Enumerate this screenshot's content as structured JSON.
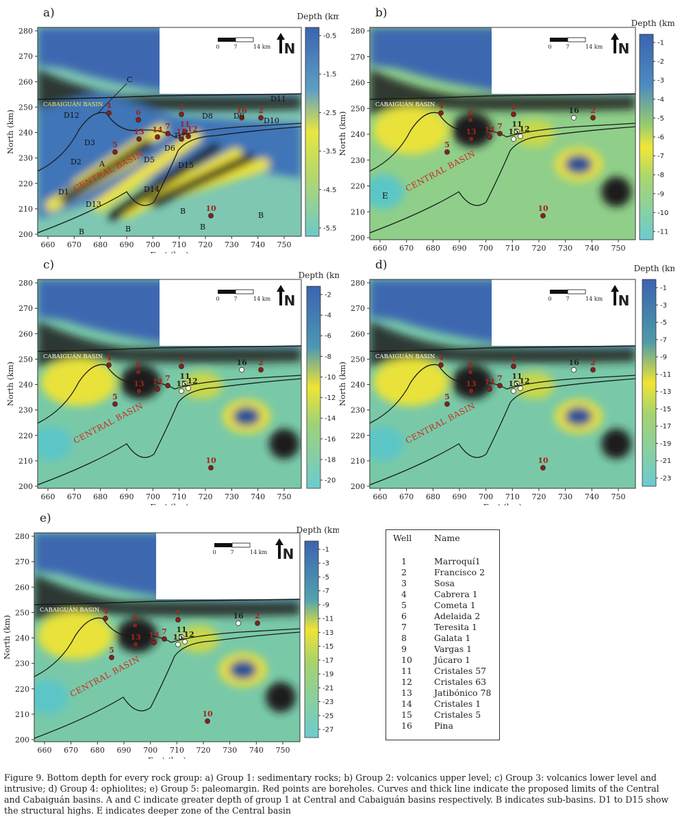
{
  "panels": [
    {
      "id": "a",
      "letter": "a)",
      "cbar_title": "Depth (km)",
      "cbar_ticks": [
        "-0.5",
        "-1.5",
        "-2.5",
        "-3.5",
        "-4.5",
        "-5.5"
      ],
      "cmap": "a"
    },
    {
      "id": "b",
      "letter": "b)",
      "cbar_title": "Depth (km)",
      "cbar_ticks": [
        "-1",
        "-2",
        "-3",
        "-4",
        "-5",
        "-6",
        "-7",
        "-8",
        "-9",
        "-10",
        "-11"
      ],
      "cmap": "b"
    },
    {
      "id": "c",
      "letter": "c)",
      "cbar_title": "Depth (km)",
      "cbar_ticks": [
        "-2",
        "-4",
        "-6",
        "-8",
        "-10",
        "-12",
        "-14",
        "-16",
        "-18",
        "-20"
      ],
      "cmap": "c"
    },
    {
      "id": "d",
      "letter": "d)",
      "cbar_title": "Depth (km)",
      "cbar_ticks": [
        "-1",
        "-3",
        "-5",
        "-7",
        "-9",
        "-11",
        "-13",
        "-15",
        "-17",
        "-19",
        "-21",
        "-23"
      ],
      "cmap": "d"
    },
    {
      "id": "e",
      "letter": "e)",
      "cbar_title": "Depth (km)",
      "cbar_ticks": [
        "-1",
        "-3",
        "-5",
        "-7",
        "-9",
        "-11",
        "-13",
        "-15",
        "-17",
        "-19",
        "-21",
        "-23",
        "-25",
        "-27"
      ],
      "cmap": "e"
    }
  ],
  "axes": {
    "xlabel": "East (km)",
    "ylabel": "North (km)",
    "xticks": [
      "660",
      "670",
      "680",
      "690",
      "700",
      "710",
      "720",
      "730",
      "740",
      "750"
    ],
    "yticks": [
      "280",
      "270",
      "260",
      "250",
      "240",
      "230",
      "220",
      "210",
      "200"
    ]
  },
  "scalebar": {
    "labels": [
      "0",
      "7",
      "14"
    ],
    "unit": "km"
  },
  "north_label": "N",
  "basins": {
    "cabaiguan": "CABAIGUÁN BASIN",
    "central": "CENTRAL BASIN"
  },
  "panel_a_labels": [
    "C",
    "D11",
    "D12",
    "D8",
    "D9",
    "D10",
    "D3",
    "D7",
    "D6",
    "D2",
    "A",
    "D5",
    "D15",
    "D1",
    "D14",
    "D13",
    "B",
    "B",
    "B",
    "B",
    "B"
  ],
  "panel_b_labels": [
    "E"
  ],
  "wells_visible": [
    "1",
    "2",
    "4",
    "5",
    "6",
    "7",
    "10",
    "11",
    "12",
    "13",
    "14",
    "15",
    "16"
  ],
  "table": {
    "col1": "Well",
    "col2": "Name",
    "rows": [
      {
        "num": "1",
        "name": "Marroquí1"
      },
      {
        "num": "2",
        "name": "Francisco 2"
      },
      {
        "num": "3",
        "name": "Sosa"
      },
      {
        "num": "4",
        "name": "Cabrera 1"
      },
      {
        "num": "5",
        "name": "Cometa 1"
      },
      {
        "num": "6",
        "name": "Adelaida 2"
      },
      {
        "num": "7",
        "name": "Teresita 1"
      },
      {
        "num": "8",
        "name": "Galata 1"
      },
      {
        "num": "9",
        "name": "Vargas 1"
      },
      {
        "num": "10",
        "name": "Júcaro 1"
      },
      {
        "num": "11",
        "name": "Cristales 57"
      },
      {
        "num": "12",
        "name": "Cristales 63"
      },
      {
        "num": "13",
        "name": "Jatibónico 78"
      },
      {
        "num": "14",
        "name": "Cristales 1"
      },
      {
        "num": "15",
        "name": "Cristales 5"
      },
      {
        "num": "16",
        "name": "Pina"
      }
    ]
  },
  "caption": "Figure 9. Bottom depth for every rock group: a) Group 1: sedimentary rocks; b) Group 2: volcanics upper level; c) Group 3: volcanics lower level and intrusive; d) Group 4: ophiolites; e) Group 5: paleomargin. Red points are boreholes. Curves and thick line indicate the proposed limits of the Central and Cabaiguán basins. A and C indicate greater depth of group 1 at Central and Cabaiguán basins respectively. B indicates sub-basins. D1 to D15 show the structural highs. E indicates deeper zone of the Central basin",
  "colors": {
    "deep_blue": "#3f6fb5",
    "yellow": "#f2e830",
    "teal": "#5fbfb8",
    "dark": "#1b1b1b",
    "well_red": "#8b1f1a",
    "label_red": "#cc2a20"
  }
}
